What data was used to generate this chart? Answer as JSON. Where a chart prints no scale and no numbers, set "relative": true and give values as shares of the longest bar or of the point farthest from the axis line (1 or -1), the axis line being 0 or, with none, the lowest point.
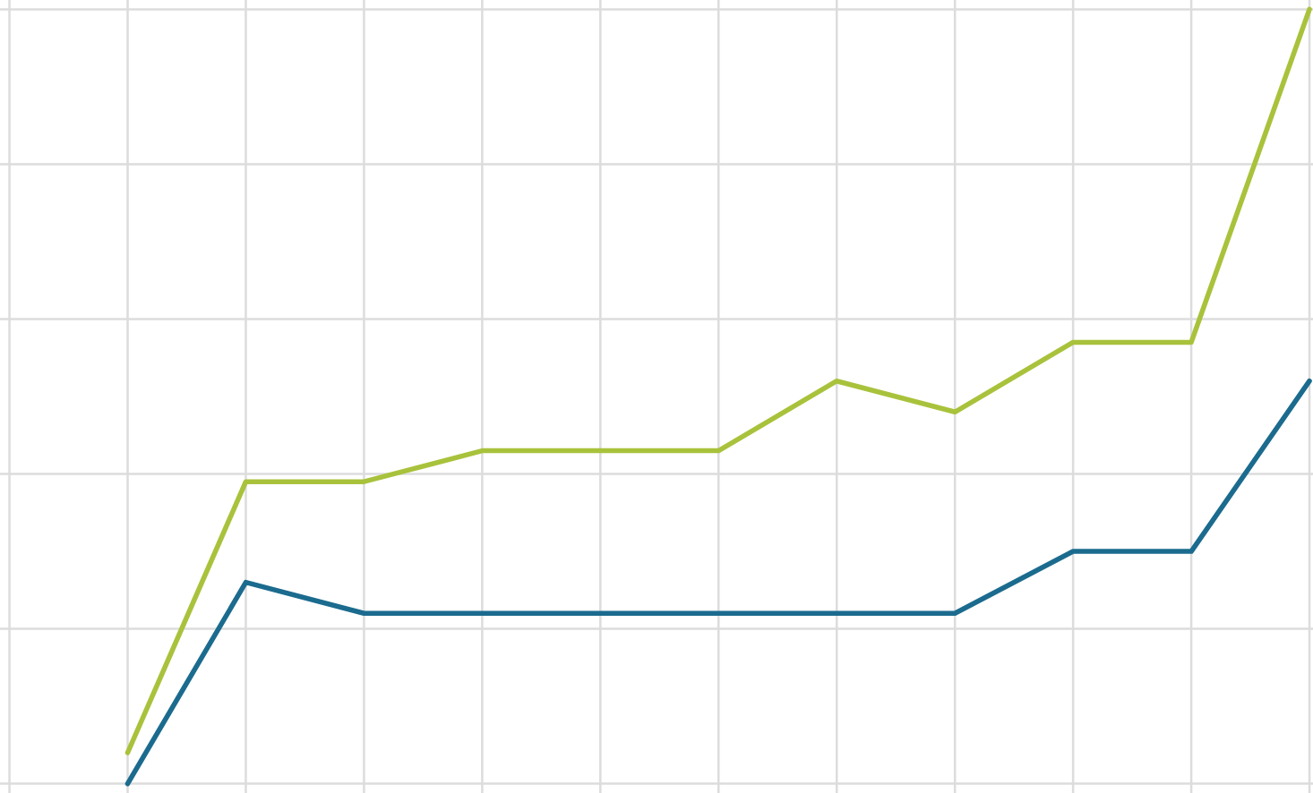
{
  "chart_data": {
    "type": "line",
    "relative": true,
    "categories": [
      null,
      null,
      null,
      null,
      null,
      null,
      null,
      null,
      null,
      null,
      null,
      null
    ],
    "series": [
      {
        "color": "#a9c23c",
        "values": [
          null,
          0.04,
          0.39,
          0.39,
          0.43,
          0.43,
          0.43,
          0.52,
          0.48,
          0.57,
          0.57,
          1
        ]
      },
      {
        "color": "#1b6b8e",
        "values": [
          null,
          0,
          0.26,
          0.22,
          0.22,
          0.22,
          0.22,
          0.22,
          0.22,
          0.3,
          0.3,
          0.52
        ]
      }
    ],
    "grid": true,
    "marker": "none",
    "line_style": "solid"
  }
}
